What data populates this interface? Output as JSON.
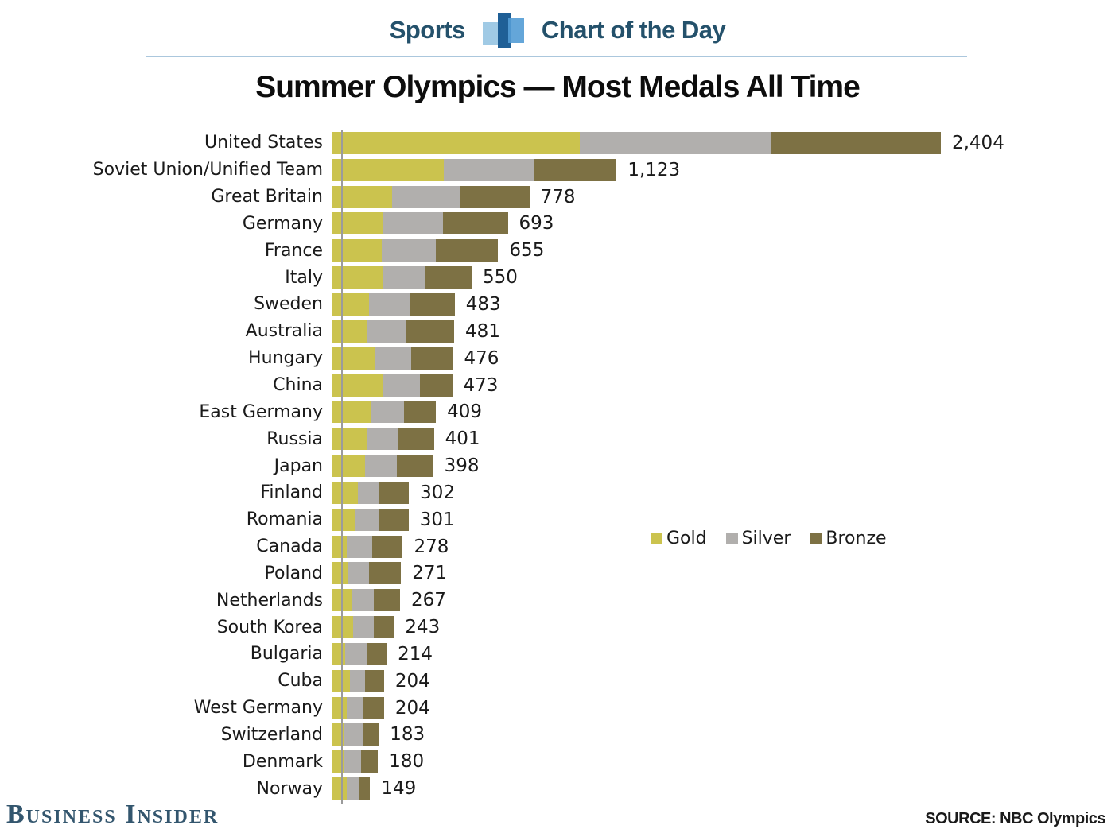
{
  "header": {
    "section_label": "Sports",
    "series_label": "Chart of the Day",
    "logo_icon": "bar-chart-icon",
    "text_color": "#24516b",
    "divider_color": "#abc7dd"
  },
  "footer": {
    "brand": "Business Insider",
    "brand_color": "#33566e",
    "source": "SOURCE: NBC Olympics"
  },
  "chart_data": {
    "type": "bar",
    "orientation": "horizontal",
    "stacked": true,
    "title": "Summer Olympics — Most Medals All Time",
    "xlabel": "",
    "ylabel": "",
    "xlim": [
      0,
      2404
    ],
    "grid": false,
    "legend_position": "center-right",
    "axis_line_color": "#9b9b9b",
    "categories": [
      "United States",
      "Soviet Union/Unified Team",
      "Great Britain",
      "Germany",
      "France",
      "Italy",
      "Sweden",
      "Australia",
      "Hungary",
      "China",
      "East Germany",
      "Russia",
      "Japan",
      "Finland",
      "Romania",
      "Canada",
      "Poland",
      "Netherlands",
      "South Korea",
      "Bulgaria",
      "Cuba",
      "West Germany",
      "Switzerland",
      "Denmark",
      "Norway"
    ],
    "series": [
      {
        "name": "Gold",
        "color": "#cbc34e",
        "values": [
          976,
          440,
          236,
          199,
          194,
          198,
          143,
          138,
          167,
          201,
          153,
          138,
          130,
          101,
          88,
          58,
          64,
          77,
          81,
          51,
          68,
          56,
          46,
          43,
          56
        ]
      },
      {
        "name": "Silver",
        "color": "#b1afad",
        "values": [
          757,
          357,
          271,
          237,
          216,
          166,
          164,
          154,
          144,
          146,
          129,
          120,
          126,
          84,
          94,
          99,
          82,
          86,
          82,
          85,
          60,
          67,
          72,
          69,
          49
        ]
      },
      {
        "name": "Bronze",
        "color": "#7d7144",
        "values": [
          671,
          326,
          271,
          257,
          245,
          186,
          176,
          189,
          165,
          126,
          127,
          143,
          142,
          117,
          119,
          121,
          125,
          104,
          80,
          78,
          76,
          81,
          65,
          68,
          44
        ]
      }
    ],
    "totals": [
      2404,
      1123,
      778,
      693,
      655,
      550,
      483,
      481,
      476,
      473,
      409,
      401,
      398,
      302,
      301,
      278,
      271,
      267,
      243,
      214,
      204,
      204,
      183,
      180,
      149
    ],
    "total_labels": [
      "2,404",
      "1,123",
      "778",
      "693",
      "655",
      "550",
      "483",
      "481",
      "476",
      "473",
      "409",
      "401",
      "398",
      "302",
      "301",
      "278",
      "271",
      "267",
      "243",
      "214",
      "204",
      "204",
      "183",
      "180",
      "149"
    ]
  }
}
